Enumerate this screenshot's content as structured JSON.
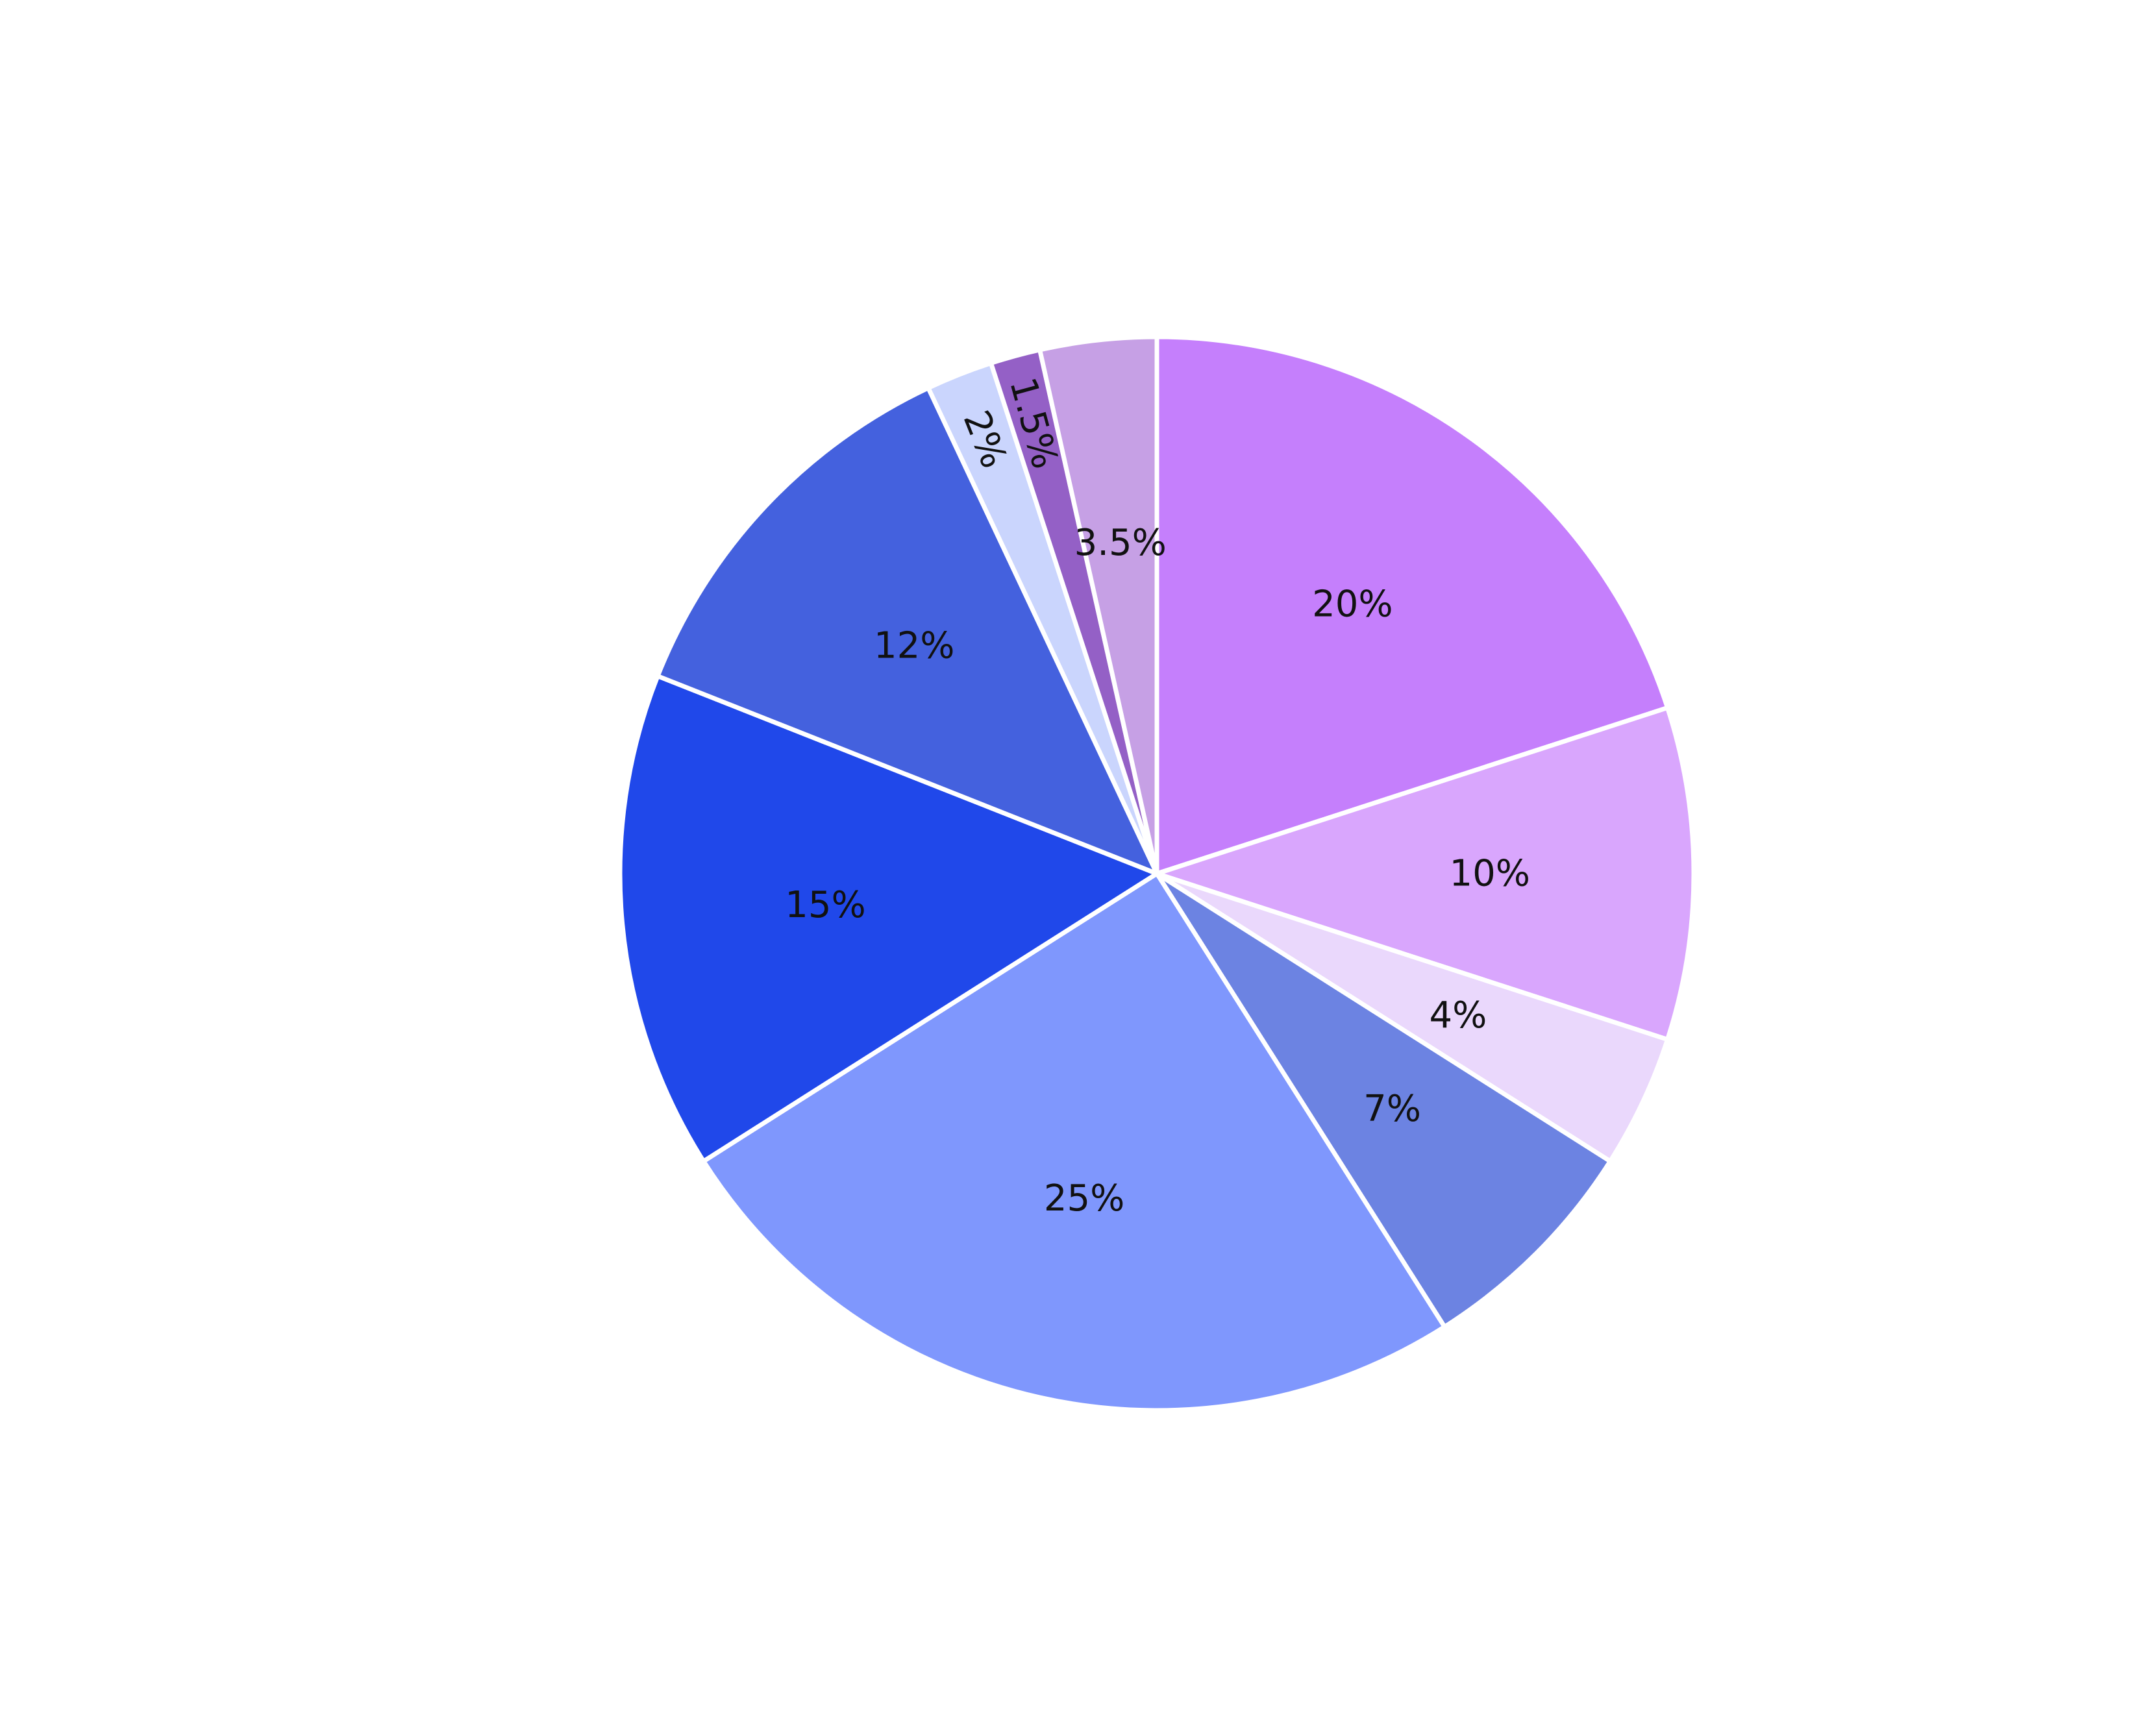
{
  "chart_data": {
    "type": "pie",
    "title": "",
    "start_angle_deg": 0,
    "direction": "clockwise",
    "slice_border_color": "#ffffff",
    "slices": [
      {
        "value": 20,
        "label": "20%",
        "color": "#C57FFC",
        "label_rotated": false
      },
      {
        "value": 10,
        "label": "10%",
        "color": "#D9A6FD",
        "label_rotated": false
      },
      {
        "value": 4,
        "label": "4%",
        "color": "#EAD8FC",
        "label_rotated": false
      },
      {
        "value": 7,
        "label": "7%",
        "color": "#6C83E2",
        "label_rotated": false
      },
      {
        "value": 25,
        "label": "25%",
        "color": "#7F97FD",
        "label_rotated": false
      },
      {
        "value": 15,
        "label": "15%",
        "color": "#2048EA",
        "label_rotated": false
      },
      {
        "value": 12,
        "label": "12%",
        "color": "#4461DE",
        "label_rotated": false
      },
      {
        "value": 2,
        "label": "2%",
        "color": "#CAD5FD",
        "label_rotated": true
      },
      {
        "value": 1.5,
        "label": "1.5%",
        "color": "#9460C6",
        "label_rotated": true
      },
      {
        "value": 3.5,
        "label": "3.5%",
        "color": "#C6A0E5",
        "label_rotated": false
      }
    ]
  }
}
